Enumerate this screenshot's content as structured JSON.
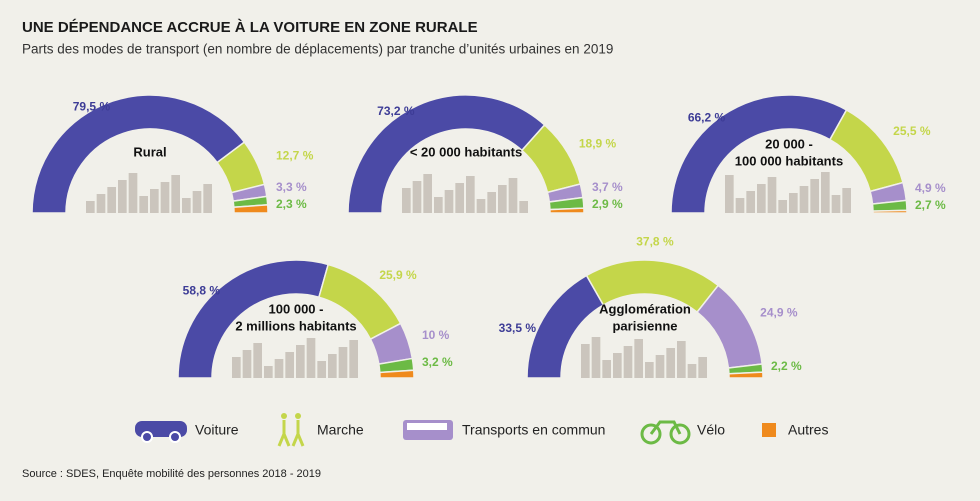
{
  "title": "UNE DÉPENDANCE ACCRUE À LA VOITURE EN ZONE RURALE",
  "subtitle": "Parts des modes de transport (en nombre de déplacements) par tranche d’unités urbaines en 2019",
  "source": "Source : SDES, Enquête mobilité des personnes 2018 - 2019",
  "legend": {
    "labels": [
      "Voiture",
      "Marche",
      "Transports en commun",
      "Vélo",
      "Autres"
    ],
    "colors": [
      "#4b4aa6",
      "#c4d64a",
      "#a68fcb",
      "#6cba45",
      "#ef8a1d"
    ]
  },
  "chart_data": [
    {
      "type": "donut",
      "title": [
        "Rural"
      ],
      "values": [
        79.5,
        12.7,
        3.3,
        2.3,
        2.2
      ],
      "value_labels": [
        "79,5 %",
        "12,7 %",
        "3,3 %",
        "2,3 %",
        null
      ]
    },
    {
      "type": "donut",
      "title": [
        "< 20 000 habitants"
      ],
      "values": [
        73.2,
        18.9,
        3.7,
        2.9,
        1.3
      ],
      "value_labels": [
        "73,2 %",
        "18,9 %",
        "3,7 %",
        "2,9 %",
        null
      ]
    },
    {
      "type": "donut",
      "title": [
        "20 000 -",
        "100 000 habitants"
      ],
      "values": [
        66.2,
        25.5,
        4.9,
        2.7,
        0.7
      ],
      "value_labels": [
        "66,2 %",
        "25,5 %",
        "4,9 %",
        "2,7 %",
        null
      ]
    },
    {
      "type": "donut",
      "title": [
        "100 000 -",
        "2 millions habitants"
      ],
      "values": [
        58.8,
        25.9,
        10,
        3.2,
        2.1
      ],
      "value_labels": [
        "58,8 %",
        "25,9 %",
        "10 %",
        "3,2 %",
        null
      ]
    },
    {
      "type": "donut",
      "title": [
        "Agglomération",
        "parisienne"
      ],
      "values": [
        33.5,
        37.8,
        24.9,
        2.2,
        1.6
      ],
      "value_labels": [
        "33,5 %",
        "37,8 %",
        "24,9 %",
        "2,2 %",
        null
      ]
    }
  ]
}
